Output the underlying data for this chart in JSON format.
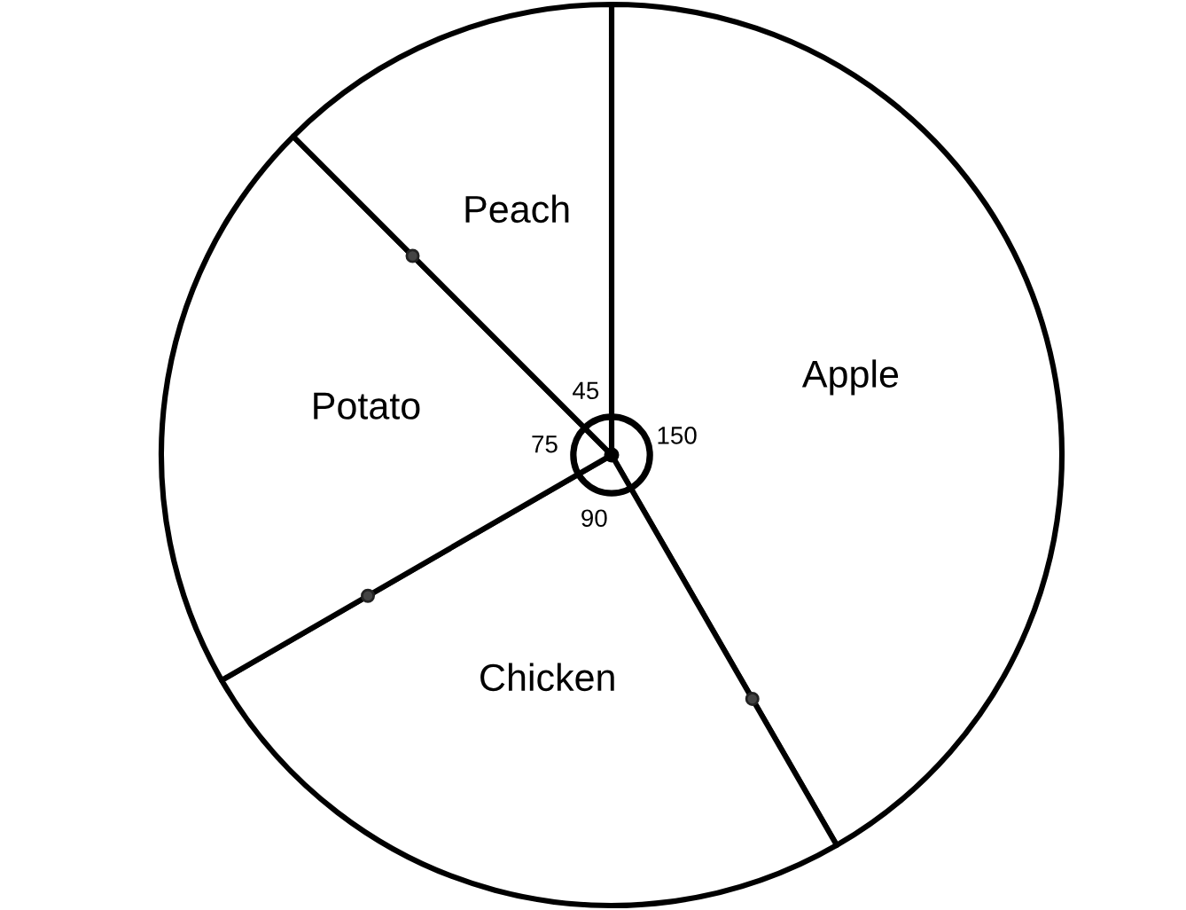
{
  "chart_data": {
    "type": "pie",
    "categories": [
      "Apple",
      "Chicken",
      "Potato",
      "Peach"
    ],
    "values": [
      150,
      90,
      75,
      45
    ],
    "colors": [
      "#ffffff",
      "#ffffff",
      "#ffffff",
      "#ffffff"
    ],
    "data_labels": true
  }
}
